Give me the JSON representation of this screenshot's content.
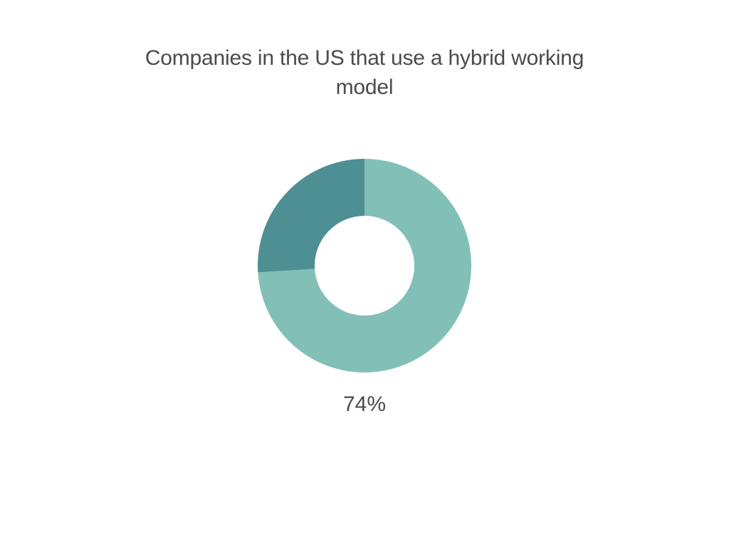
{
  "chart": {
    "type": "donut",
    "title": "Companies in the US that use a hybrid working model",
    "value": 74,
    "value_label": "74%",
    "primary_color": "#82c0b7",
    "secondary_color": "#4e8f94",
    "background_color": "#ffffff",
    "title_color": "#4b4b4b",
    "value_label_color": "#4b4b4b",
    "title_fontsize": 30,
    "value_fontsize": 30,
    "outer_radius": 150,
    "inner_radius": 70,
    "start_angle_deg": -90,
    "direction": "clockwise"
  }
}
